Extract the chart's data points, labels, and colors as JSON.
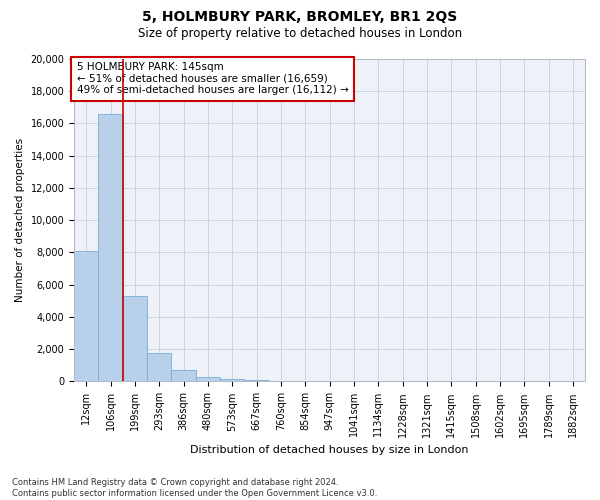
{
  "title": "5, HOLMBURY PARK, BROMLEY, BR1 2QS",
  "subtitle": "Size of property relative to detached houses in London",
  "xlabel": "Distribution of detached houses by size in London",
  "ylabel": "Number of detached properties",
  "bar_color": "#b8d0ea",
  "bar_edge_color": "#7aadd4",
  "grid_color": "#c8d4e4",
  "background_color": "#eef2f8",
  "vline_color": "#cc0000",
  "vline_position": 1.5,
  "annotation_text": "5 HOLMBURY PARK: 145sqm\n← 51% of detached houses are smaller (16,659)\n49% of semi-detached houses are larger (16,112) →",
  "annotation_box_color": "#ffffff",
  "annotation_box_edge_color": "#cc0000",
  "footnote": "Contains HM Land Registry data © Crown copyright and database right 2024.\nContains public sector information licensed under the Open Government Licence v3.0.",
  "bin_labels": [
    "12sqm",
    "106sqm",
    "199sqm",
    "293sqm",
    "386sqm",
    "480sqm",
    "573sqm",
    "667sqm",
    "760sqm",
    "854sqm",
    "947sqm",
    "1041sqm",
    "1134sqm",
    "1228sqm",
    "1321sqm",
    "1415sqm",
    "1508sqm",
    "1602sqm",
    "1695sqm",
    "1789sqm",
    "1882sqm"
  ],
  "bar_heights": [
    8100,
    16600,
    5300,
    1750,
    680,
    270,
    160,
    100,
    0,
    0,
    0,
    0,
    0,
    0,
    0,
    0,
    0,
    0,
    0,
    0,
    0
  ],
  "ylim": [
    0,
    20000
  ],
  "yticks": [
    0,
    2000,
    4000,
    6000,
    8000,
    10000,
    12000,
    14000,
    16000,
    18000,
    20000
  ],
  "title_fontsize": 10,
  "subtitle_fontsize": 8.5,
  "ylabel_fontsize": 7.5,
  "xlabel_fontsize": 8,
  "tick_fontsize": 7,
  "annotation_fontsize": 7.5
}
